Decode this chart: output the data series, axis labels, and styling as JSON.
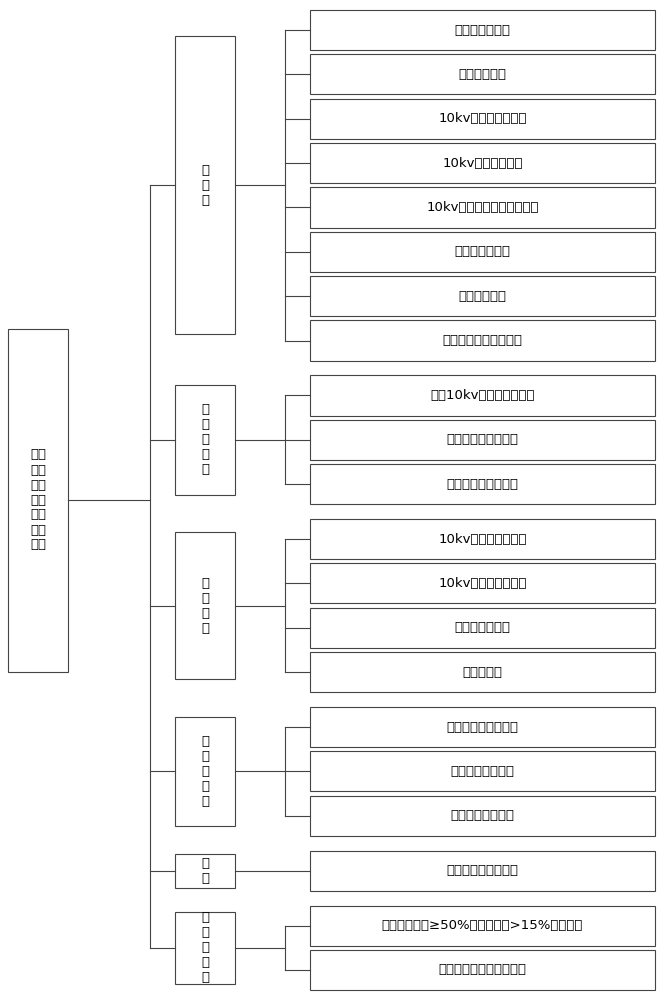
{
  "root_label": "配电\n网运\n检驾\n驶舱\n关键\n指标\n体系",
  "categories": [
    {
      "label": "负\n载\n率",
      "leaves": [
        "主变重过载比例",
        "主变轻载比例",
        "10kv线路重过载比例",
        "10kv线路轻载比例",
        "10kv线路存在危急风险比例",
        "配变重过载比例",
        "配变轻载比例",
        "配变存在危急风险比例"
      ]
    },
    {
      "label": "电\n压\n合\n格\n率",
      "leaves": [
        "主变10kv母线电压合格率",
        "台区关口电压合格率",
        "低压用户电压合格率"
      ]
    },
    {
      "label": "运\n行\n故\n障",
      "leaves": [
        "10kv架空线路故障率",
        "10kv电缆线路故障率",
        "开关设备故障率",
        "配变故障率"
      ]
    },
    {
      "label": "供\n电\n可\n靠\n性",
      "leaves": [
        "中、低压供电可靠率",
        "用户平均停电次数",
        "重复停电用户比例"
      ]
    },
    {
      "label": "线\n损",
      "leaves": [
        "中、低压统计线损率"
      ]
    },
    {
      "label": "三\n相\n不\n平\n衡",
      "leaves": [
        "三相不平衡度≥50%的时间占比>15%台区比例",
        "严重三相不平衡台区比例"
      ]
    }
  ],
  "bg_color": "#ffffff",
  "box_color": "#ffffff",
  "border_color": "#444444",
  "line_color": "#444444",
  "text_color": "#000000",
  "leaf_fontsize": 9.5,
  "cat_fontsize": 9.5,
  "root_fontsize": 9.5
}
